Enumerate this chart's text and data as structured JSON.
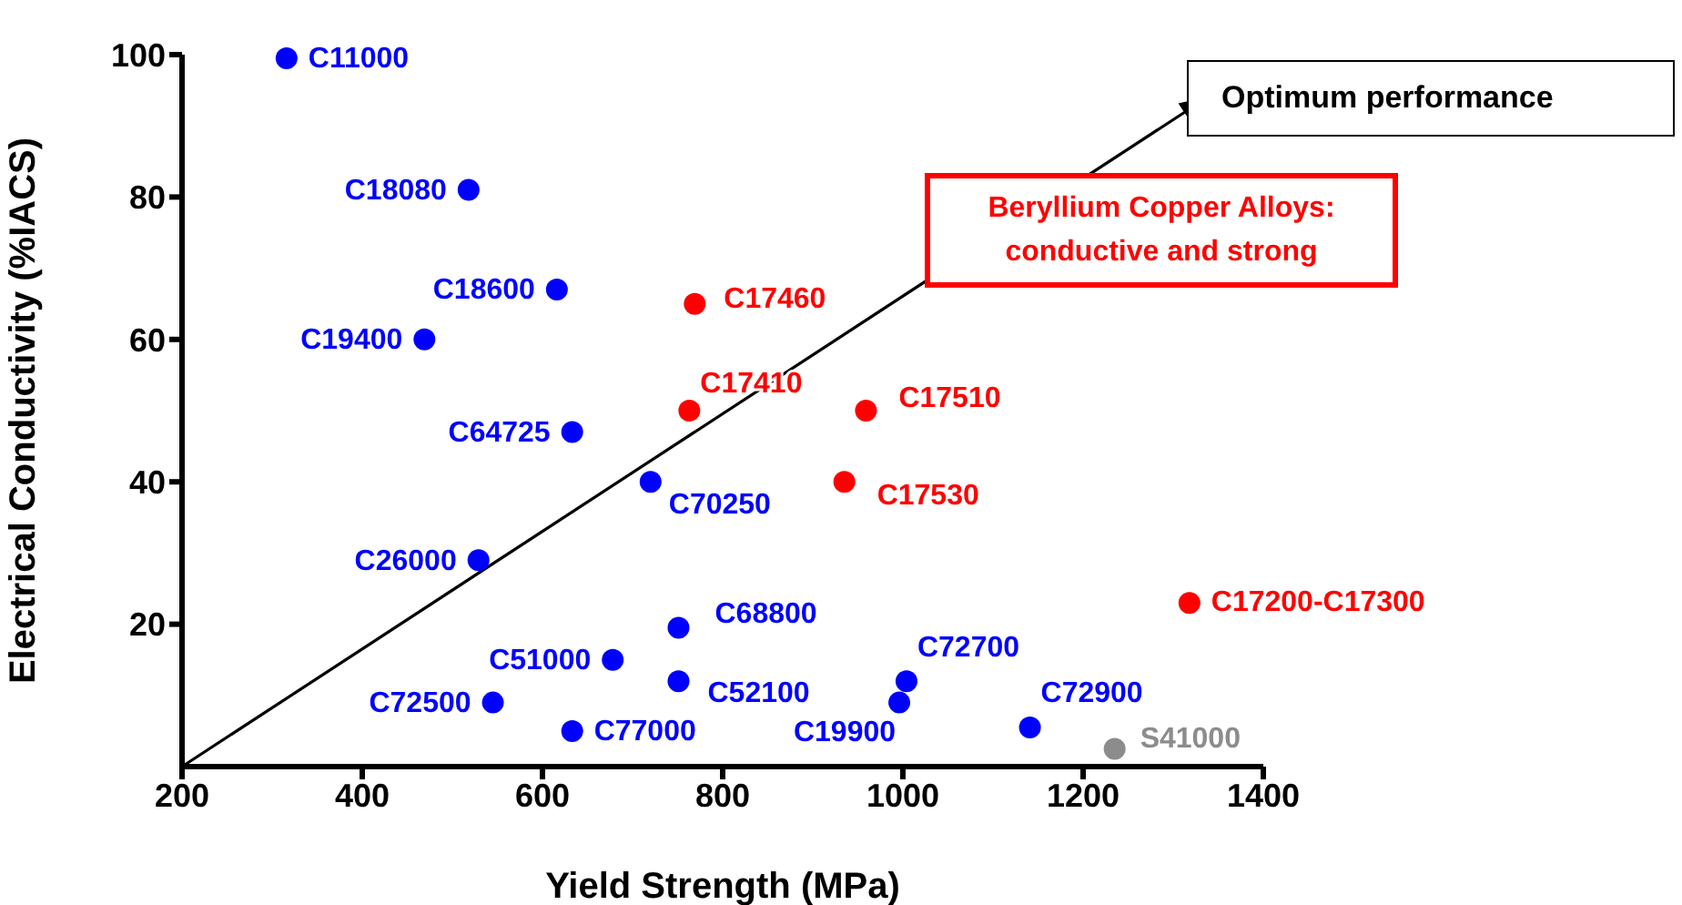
{
  "chart_data": {
    "type": "scatter",
    "xlabel": "Yield Strength (MPa)",
    "ylabel": "Electrical Conductivity (%IACS)",
    "xlim": [
      200,
      1400
    ],
    "xticks": [
      200,
      400,
      600,
      800,
      1000,
      1200,
      1400
    ],
    "ylim": [
      0,
      100
    ],
    "yticks": [
      20,
      40,
      60,
      80,
      100
    ],
    "grid": false,
    "legend": false,
    "marker": "circle",
    "annotations": [
      "Optimum performance",
      "Beryllium Copper Alloys: conductive and strong"
    ],
    "series": [
      {
        "name": "C11000",
        "color": "#0000ff",
        "x": [
          316
        ],
        "values": [
          99.5
        ]
      },
      {
        "name": "C18080",
        "color": "#0000ff",
        "x": [
          518
        ],
        "values": [
          81
        ]
      },
      {
        "name": "C18600",
        "color": "#0000ff",
        "x": [
          616
        ],
        "values": [
          67
        ]
      },
      {
        "name": "C19400",
        "color": "#0000ff",
        "x": [
          469
        ],
        "values": [
          60
        ]
      },
      {
        "name": "C64725",
        "color": "#0000ff",
        "x": [
          633
        ],
        "values": [
          47
        ]
      },
      {
        "name": "C70250",
        "color": "#0000ff",
        "x": [
          720
        ],
        "values": [
          40
        ]
      },
      {
        "name": "C26000",
        "color": "#0000ff",
        "x": [
          529
        ],
        "values": [
          29
        ]
      },
      {
        "name": "C68800",
        "color": "#0000ff",
        "x": [
          751
        ],
        "values": [
          19.5
        ]
      },
      {
        "name": "C51000",
        "color": "#0000ff",
        "x": [
          678
        ],
        "values": [
          15
        ]
      },
      {
        "name": "C52100",
        "color": "#0000ff",
        "x": [
          751
        ],
        "values": [
          12
        ]
      },
      {
        "name": "C72500",
        "color": "#0000ff",
        "x": [
          545
        ],
        "values": [
          9
        ]
      },
      {
        "name": "C77000",
        "color": "#0000ff",
        "x": [
          633
        ],
        "values": [
          5
        ]
      },
      {
        "name": "C72700",
        "color": "#0000ff",
        "x": [
          1004
        ],
        "values": [
          12
        ]
      },
      {
        "name": "C19900",
        "color": "#0000ff",
        "x": [
          996
        ],
        "values": [
          9
        ]
      },
      {
        "name": "C72900",
        "color": "#0000ff",
        "x": [
          1141
        ],
        "values": [
          5.5
        ]
      },
      {
        "name": "C17460",
        "color": "#ff0000",
        "x": [
          769
        ],
        "values": [
          65
        ]
      },
      {
        "name": "C17410",
        "color": "#ff0000",
        "x": [
          763
        ],
        "values": [
          50
        ]
      },
      {
        "name": "C17510",
        "color": "#ff0000",
        "x": [
          959
        ],
        "values": [
          50
        ]
      },
      {
        "name": "C17530",
        "color": "#ff0000",
        "x": [
          935
        ],
        "values": [
          40
        ]
      },
      {
        "name": "C17200-C17300",
        "color": "#ff0000",
        "x": [
          1318
        ],
        "values": [
          23
        ]
      },
      {
        "name": "S41000",
        "color": "#8c8c8c",
        "x": [
          1235
        ],
        "values": [
          2.5
        ]
      }
    ]
  }
}
